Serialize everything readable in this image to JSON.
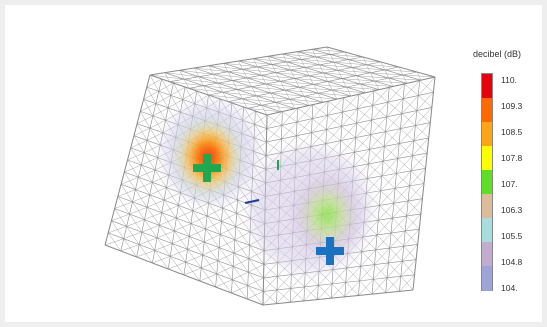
{
  "legend": {
    "title": "decibel (dB)",
    "labels": [
      "110.",
      "109.3",
      "108.5",
      "107.8",
      "107.",
      "106.3",
      "105.5",
      "104.8",
      "104."
    ],
    "colors": [
      "#e8000c",
      "#ff6a00",
      "#ffa514",
      "#ffff00",
      "#5ede26",
      "#ddbc9c",
      "#a8dde0",
      "#c4abd0",
      "#9da5d8"
    ]
  },
  "colors": {
    "mesh": "#8c8c8c",
    "marker_left": "#1fa84f",
    "marker_right": "#1a72c0"
  },
  "icons": [
    "plus-marker-icon",
    "plus-marker-icon"
  ]
}
